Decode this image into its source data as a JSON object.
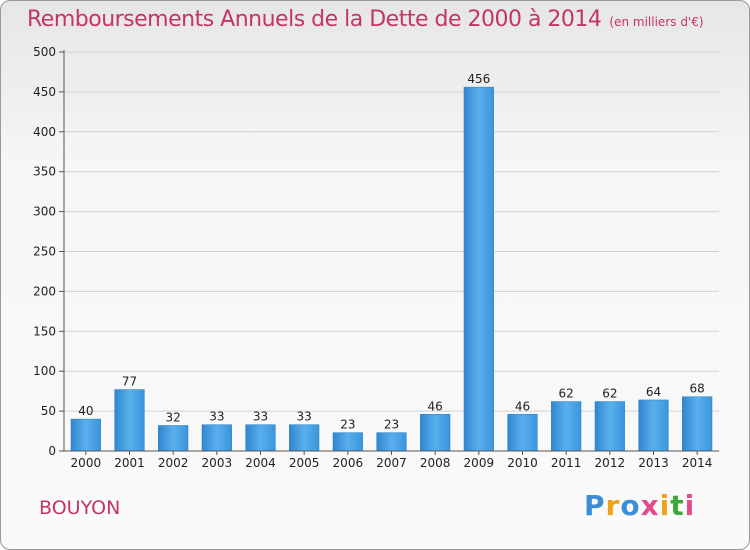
{
  "header": {
    "title": "Remboursements Annuels de la Dette de 2000 à 2014",
    "unit": "(en milliers d'€)"
  },
  "footer": {
    "commune": "BOUYON",
    "logo": {
      "letters": [
        "P",
        "r",
        "o",
        "x",
        "i",
        "t",
        "i"
      ],
      "colors": [
        "#3a8fd6",
        "#f0a21c",
        "#3a8fd6",
        "#e24c8a",
        "#f0a21c",
        "#3aa83a",
        "#e24c8a"
      ]
    }
  },
  "chart_data": {
    "type": "bar",
    "title": "Remboursements Annuels de la Dette de 2000 à 2014",
    "categories": [
      "2000",
      "2001",
      "2002",
      "2003",
      "2004",
      "2005",
      "2006",
      "2007",
      "2008",
      "2009",
      "2010",
      "2011",
      "2012",
      "2013",
      "2014"
    ],
    "values": [
      40,
      77,
      32,
      33,
      33,
      33,
      23,
      23,
      46,
      456,
      46,
      62,
      62,
      64,
      68
    ],
    "ylim": [
      0,
      500
    ],
    "yticks": [
      0,
      50,
      100,
      150,
      200,
      250,
      300,
      350,
      400,
      450,
      500
    ],
    "grid": true,
    "bar_color": "#4aa3e6"
  }
}
